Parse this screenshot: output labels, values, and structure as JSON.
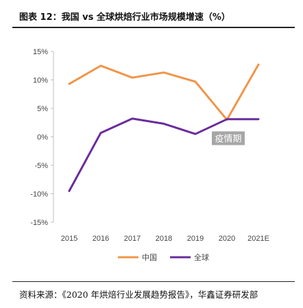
{
  "title": "图表 12：我国 vs 全球烘焙行业市场规模增速（%）",
  "source": "资料来源：《2020 年烘焙行业发展趋势报告》，华鑫证券研发部",
  "chart_data": {
    "type": "line",
    "categories": [
      "2015",
      "2016",
      "2017",
      "2018",
      "2019",
      "2020",
      "2021E"
    ],
    "y_ticks": [
      "15%",
      "10%",
      "5%",
      "0%",
      "-5%",
      "-10%",
      "-15%"
    ],
    "ylim": [
      -15,
      15
    ],
    "series": [
      {
        "name": "中国",
        "color": "#F0954A",
        "values": [
          9.3,
          12.5,
          10.4,
          11.3,
          9.7,
          3.0,
          12.7
        ]
      },
      {
        "name": "全球",
        "color": "#6A2C9C",
        "values": [
          -9.5,
          0.7,
          3.2,
          2.3,
          0.5,
          3.1,
          3.1
        ]
      }
    ],
    "annotation": {
      "text": "疫情期",
      "color": "#A6A6A6"
    },
    "legend": "bottom",
    "grid": false
  }
}
